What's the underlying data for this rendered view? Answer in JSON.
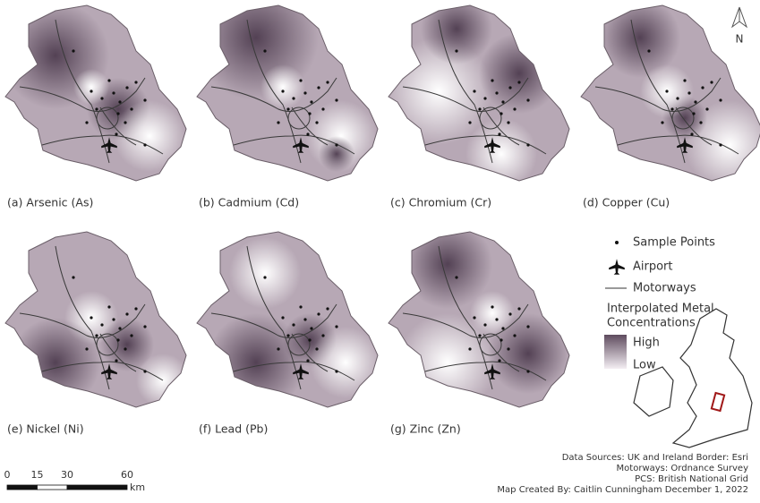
{
  "panels": [
    {
      "label": "(a) Arsenic (As)"
    },
    {
      "label": "(b) Cadmium (Cd)"
    },
    {
      "label": "(c) Chromium (Cr)"
    },
    {
      "label": "(d) Copper (Cu)"
    },
    {
      "label": "(e) Nickel (Ni)"
    },
    {
      "label": "(f) Lead (Pb)"
    },
    {
      "label": "(g) Zinc (Zn)"
    }
  ],
  "legend": {
    "sample_points": "Sample Points",
    "airport": "Airport",
    "motorways": "Motorways",
    "surface_title": [
      "Interpolated Metal",
      "Concentrations"
    ],
    "high": "High",
    "low": "Low"
  },
  "north": "N",
  "scale_bar": {
    "ticks": [
      0,
      15,
      30,
      60
    ],
    "unit": "km"
  },
  "credits": [
    "Data Sources: UK and Ireland Border: Esri",
    "Motorways: Ordnance Survey",
    "PCS: British National Grid",
    "Map Created By: Caitlin Cunningham December 1, 2022"
  ]
}
